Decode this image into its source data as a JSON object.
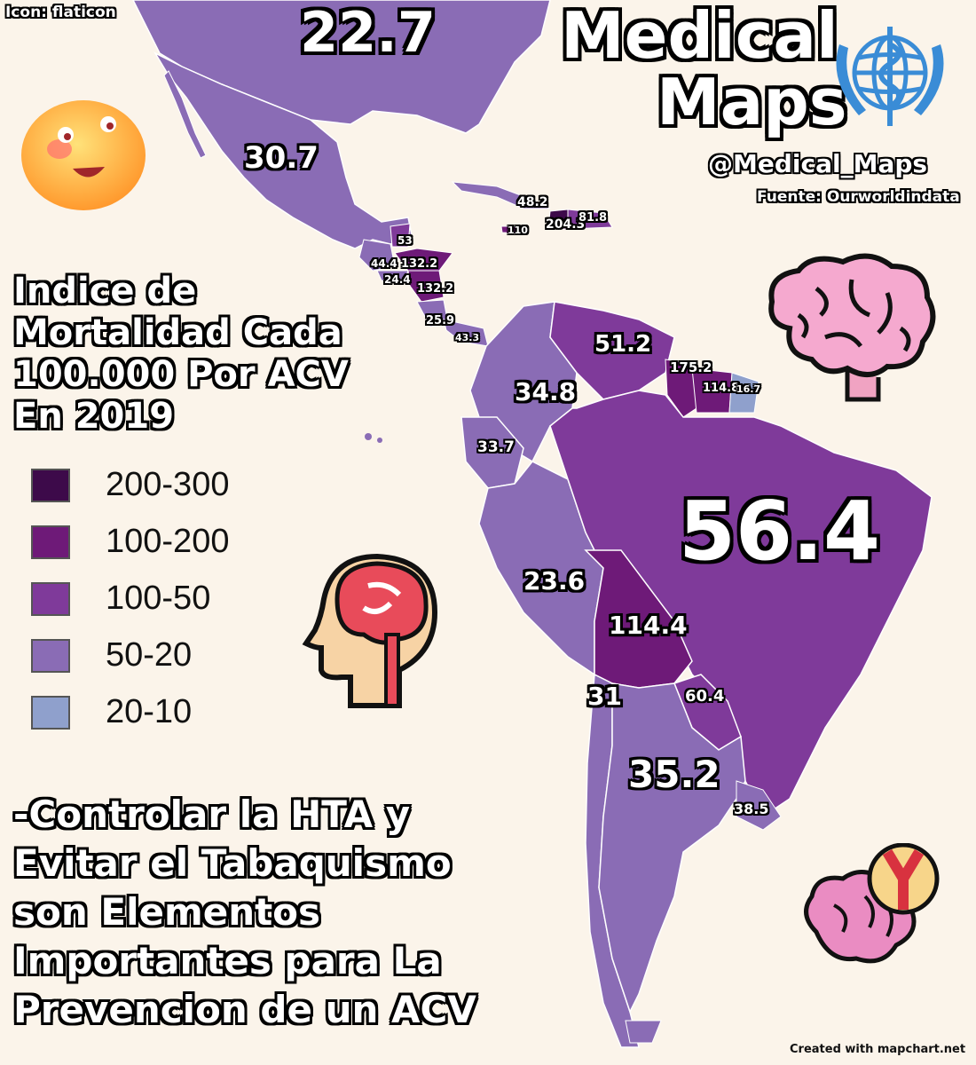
{
  "credits": {
    "icon_credit": "Icon: flaticon",
    "handle": "@Medical_Maps",
    "source": "Fuente: Ourworldindata",
    "made_with": "Created with mapchart.net"
  },
  "title": {
    "line1": "Medical",
    "line2": "Maps"
  },
  "legend": {
    "title_lines": [
      "Indice de",
      "Mortalidad Cada",
      "100.000 Por ACV",
      "En 2019"
    ],
    "items": [
      {
        "label": "200-300",
        "color": "#3d0a4a"
      },
      {
        "label": "100-200",
        "color": "#6e1a78"
      },
      {
        "label": "100-50",
        "color": "#7f3a9a"
      },
      {
        "label": "50-20",
        "color": "#8a6cb5"
      },
      {
        "label": "20-10",
        "color": "#8fa0cc"
      }
    ]
  },
  "message_lines": [
    "-Controlar la HTA y",
    "Evitar el Tabaquismo",
    "son Elementos",
    "Importantes para La",
    "Prevencion de un ACV"
  ],
  "values": {
    "usa": "22.7",
    "mexico": "30.7",
    "cuba": "48.2",
    "haiti": "110",
    "dominican": "81.8",
    "jamaica_pr": "204.3",
    "belize": "53",
    "guatemala": "44.4",
    "honduras": "132.2",
    "el_salvador": "24.4",
    "nicaragua": "132.2",
    "costa_rica": "25.9",
    "panama": "43.3",
    "venezuela": "51.2",
    "guyana": "175.2",
    "suriname": "114.8",
    "fr_guiana": "16.7",
    "colombia": "34.8",
    "ecuador": "33.7",
    "peru": "23.6",
    "bolivia": "114.4",
    "brazil": "56.4",
    "chile": "31",
    "paraguay": "60.4",
    "argentina": "35.2",
    "uruguay": "38.5"
  },
  "icons": [
    "smiley-face-icon",
    "who-emblem-icon",
    "brain-icon",
    "head-brain-icon",
    "brain-artery-icon"
  ]
}
